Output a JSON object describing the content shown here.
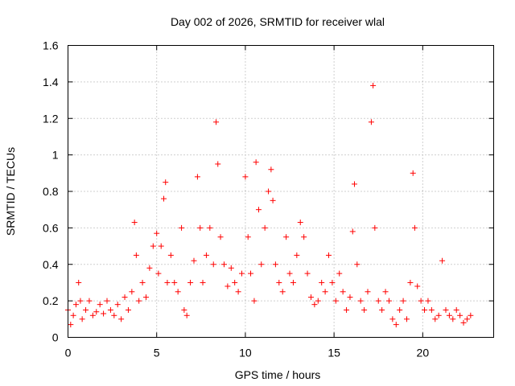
{
  "chart_data": {
    "type": "scatter",
    "title": "Day 002 of 2026, SRMTID for receiver wlal",
    "xlabel": "GPS time / hours",
    "ylabel": "SRMTID / TECUs",
    "xlim": [
      0,
      24
    ],
    "ylim": [
      0,
      1.6
    ],
    "grid": true,
    "xticks": [
      0,
      5,
      10,
      15,
      20
    ],
    "xtick_labels": [
      "0",
      "5",
      "10",
      "15",
      "20"
    ],
    "yticks": [
      0,
      0.2,
      0.4,
      0.6,
      0.8,
      1,
      1.2,
      1.4,
      1.6
    ],
    "ytick_labels": [
      "0",
      "0.2",
      "0.4",
      "0.6",
      "0.8",
      "1",
      "1.2",
      "1.4",
      "1.6"
    ],
    "marker": "+",
    "series": [
      {
        "name": "SRMTID",
        "color": "#ff0000",
        "x": [
          0.0,
          0.15,
          0.3,
          0.45,
          0.6,
          0.7,
          0.8,
          1.0,
          1.2,
          1.4,
          1.6,
          1.8,
          2.0,
          2.2,
          2.4,
          2.6,
          2.8,
          3.0,
          3.2,
          3.4,
          3.6,
          3.75,
          3.85,
          4.0,
          4.2,
          4.4,
          4.6,
          4.8,
          5.0,
          5.1,
          5.25,
          5.4,
          5.5,
          5.6,
          5.8,
          6.0,
          6.2,
          6.4,
          6.55,
          6.7,
          6.9,
          7.1,
          7.3,
          7.45,
          7.6,
          7.8,
          8.0,
          8.2,
          8.35,
          8.45,
          8.6,
          8.8,
          9.0,
          9.2,
          9.4,
          9.6,
          9.8,
          10.0,
          10.15,
          10.3,
          10.5,
          10.6,
          10.75,
          10.9,
          11.1,
          11.3,
          11.45,
          11.55,
          11.7,
          11.9,
          12.1,
          12.3,
          12.5,
          12.7,
          12.9,
          13.1,
          13.3,
          13.5,
          13.7,
          13.9,
          14.1,
          14.3,
          14.5,
          14.7,
          14.9,
          15.1,
          15.3,
          15.5,
          15.7,
          15.9,
          16.05,
          16.15,
          16.3,
          16.5,
          16.7,
          16.9,
          17.1,
          17.2,
          17.3,
          17.5,
          17.7,
          17.9,
          18.1,
          18.3,
          18.5,
          18.7,
          18.9,
          19.1,
          19.3,
          19.45,
          19.55,
          19.7,
          19.9,
          20.1,
          20.3,
          20.5,
          20.7,
          20.9,
          21.1,
          21.3,
          21.5,
          21.7,
          21.9,
          22.1,
          22.3,
          22.5,
          22.7
        ],
        "y": [
          0.15,
          0.07,
          0.12,
          0.18,
          0.3,
          0.2,
          0.1,
          0.15,
          0.2,
          0.12,
          0.14,
          0.18,
          0.13,
          0.2,
          0.15,
          0.12,
          0.18,
          0.1,
          0.22,
          0.15,
          0.25,
          0.63,
          0.45,
          0.2,
          0.3,
          0.22,
          0.38,
          0.5,
          0.57,
          0.35,
          0.5,
          0.76,
          0.85,
          0.3,
          0.45,
          0.3,
          0.25,
          0.6,
          0.15,
          0.12,
          0.3,
          0.42,
          0.88,
          0.6,
          0.3,
          0.45,
          0.6,
          0.4,
          1.18,
          0.95,
          0.55,
          0.4,
          0.28,
          0.38,
          0.3,
          0.25,
          0.35,
          0.88,
          0.55,
          0.35,
          0.2,
          0.96,
          0.7,
          0.4,
          0.6,
          0.8,
          0.92,
          0.75,
          0.4,
          0.3,
          0.25,
          0.55,
          0.35,
          0.3,
          0.45,
          0.63,
          0.55,
          0.35,
          0.22,
          0.18,
          0.2,
          0.3,
          0.25,
          0.45,
          0.3,
          0.2,
          0.35,
          0.25,
          0.15,
          0.22,
          0.58,
          0.84,
          0.4,
          0.2,
          0.15,
          0.25,
          1.18,
          1.38,
          0.6,
          0.2,
          0.15,
          0.25,
          0.2,
          0.1,
          0.07,
          0.15,
          0.2,
          0.1,
          0.3,
          0.9,
          0.6,
          0.28,
          0.2,
          0.15,
          0.2,
          0.15,
          0.1,
          0.12,
          0.42,
          0.15,
          0.12,
          0.1,
          0.15,
          0.12,
          0.08,
          0.1,
          0.12
        ]
      }
    ]
  }
}
